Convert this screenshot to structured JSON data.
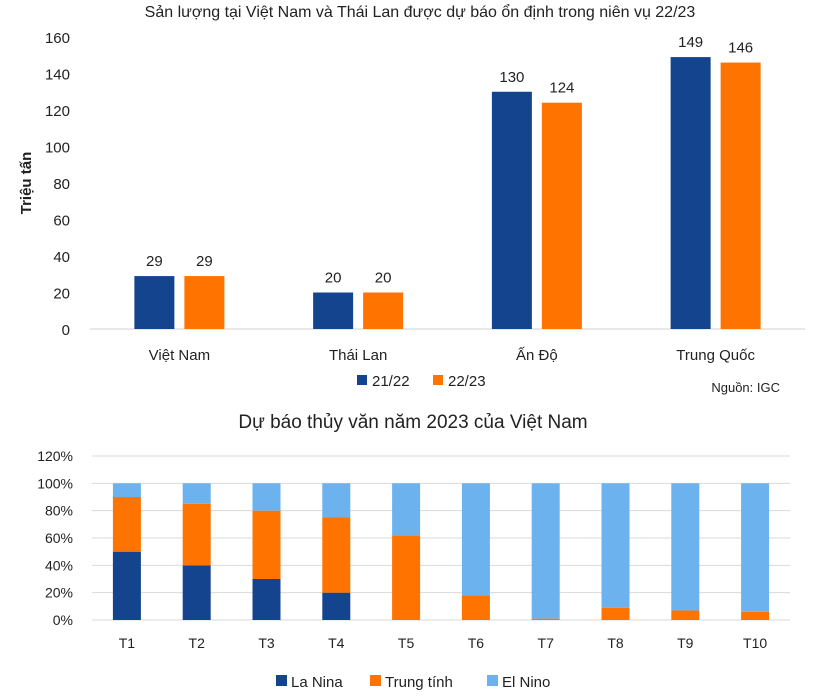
{
  "chart_data": [
    {
      "type": "bar",
      "title": "Sản lượng tại Việt Nam và Thái Lan được dự báo ổn định trong niên vụ 22/23",
      "ylabel": "Triệu tấn",
      "xlabel": "",
      "ylim": [
        0,
        160
      ],
      "yticks": [
        0,
        20,
        40,
        60,
        80,
        100,
        120,
        140,
        160
      ],
      "grid": false,
      "categories": [
        "Việt Nam",
        "Thái Lan",
        "Ấn Độ",
        "Trung Quốc"
      ],
      "series": [
        {
          "name": "21/22",
          "color": "#15448f",
          "values": [
            29,
            20,
            130,
            149
          ]
        },
        {
          "name": "22/23",
          "color": "#ff7300",
          "values": [
            29,
            20,
            124,
            146
          ]
        }
      ],
      "legend": "bottom",
      "source": "Nguồn: IGC"
    },
    {
      "type": "bar",
      "stacked": true,
      "title": "Dự báo thủy văn năm 2023 của Việt Nam",
      "ylim": [
        0,
        120
      ],
      "yticks": [
        "0%",
        "20%",
        "40%",
        "60%",
        "80%",
        "100%",
        "120%"
      ],
      "grid": true,
      "categories": [
        "T1",
        "T2",
        "T3",
        "T4",
        "T5",
        "T6",
        "T7",
        "T8",
        "T9",
        "T10"
      ],
      "series": [
        {
          "name": "La Nina",
          "color": "#15448f",
          "values": [
            50,
            40,
            30,
            20,
            0,
            0,
            0,
            0,
            0,
            0
          ]
        },
        {
          "name": "Trung tính",
          "color": "#ff7300",
          "values": [
            40,
            45,
            50,
            55,
            62,
            18,
            1,
            9,
            7,
            6
          ]
        },
        {
          "name": "El Nino",
          "color": "#6bb2ef",
          "values": [
            10,
            15,
            20,
            25,
            38,
            82,
            99,
            91,
            93,
            94
          ]
        }
      ],
      "legend": "bottom"
    }
  ]
}
